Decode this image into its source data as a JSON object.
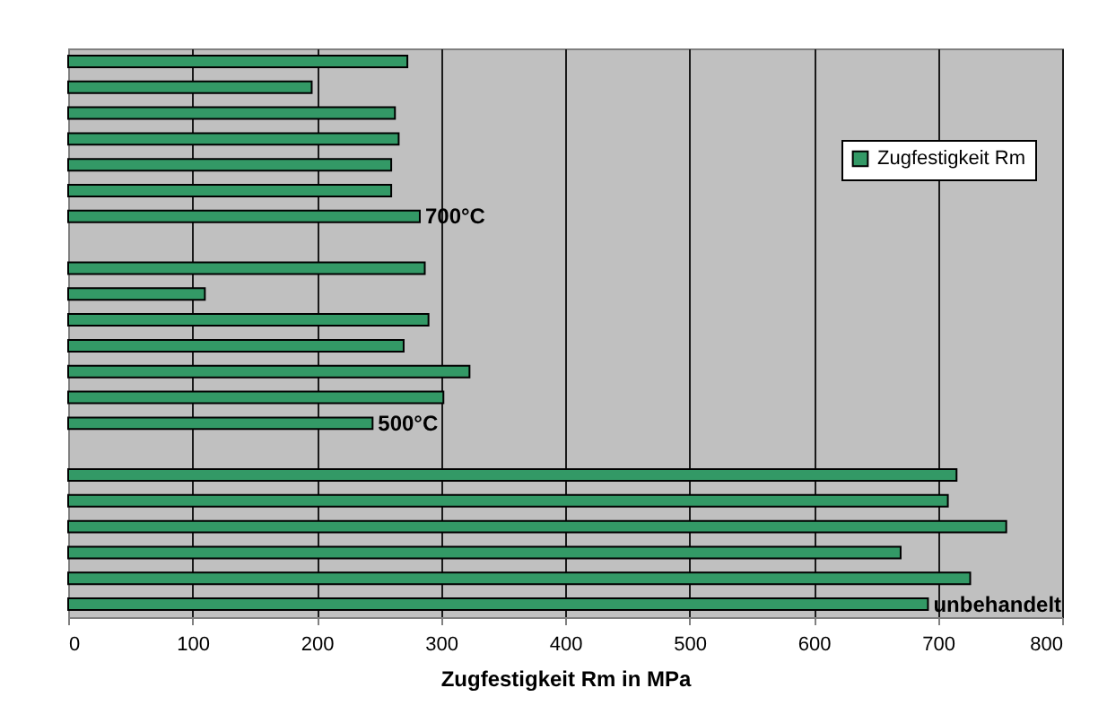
{
  "chart_data": {
    "type": "bar",
    "orientation": "horizontal",
    "categories": [
      null,
      null,
      null,
      null,
      null,
      null,
      "700°C",
      null,
      null,
      null,
      null,
      null,
      null,
      null,
      "500°C",
      null,
      null,
      null,
      null,
      null,
      null,
      "unbehandelt"
    ],
    "series": [
      {
        "name": "Zugfestigkeit Rm",
        "color": "#339966",
        "values": [
          273,
          196,
          263,
          266,
          260,
          260,
          283,
          null,
          287,
          110,
          290,
          270,
          323,
          302,
          245,
          null,
          715,
          708,
          755,
          670,
          726,
          692
        ]
      }
    ],
    "xlabel": "Zugfestigkeit Rm in MPa",
    "xlim": [
      0,
      800
    ],
    "xticks": [
      0,
      100,
      200,
      300,
      400,
      500,
      600,
      700,
      800
    ],
    "grid": "x",
    "legend": "top right"
  }
}
